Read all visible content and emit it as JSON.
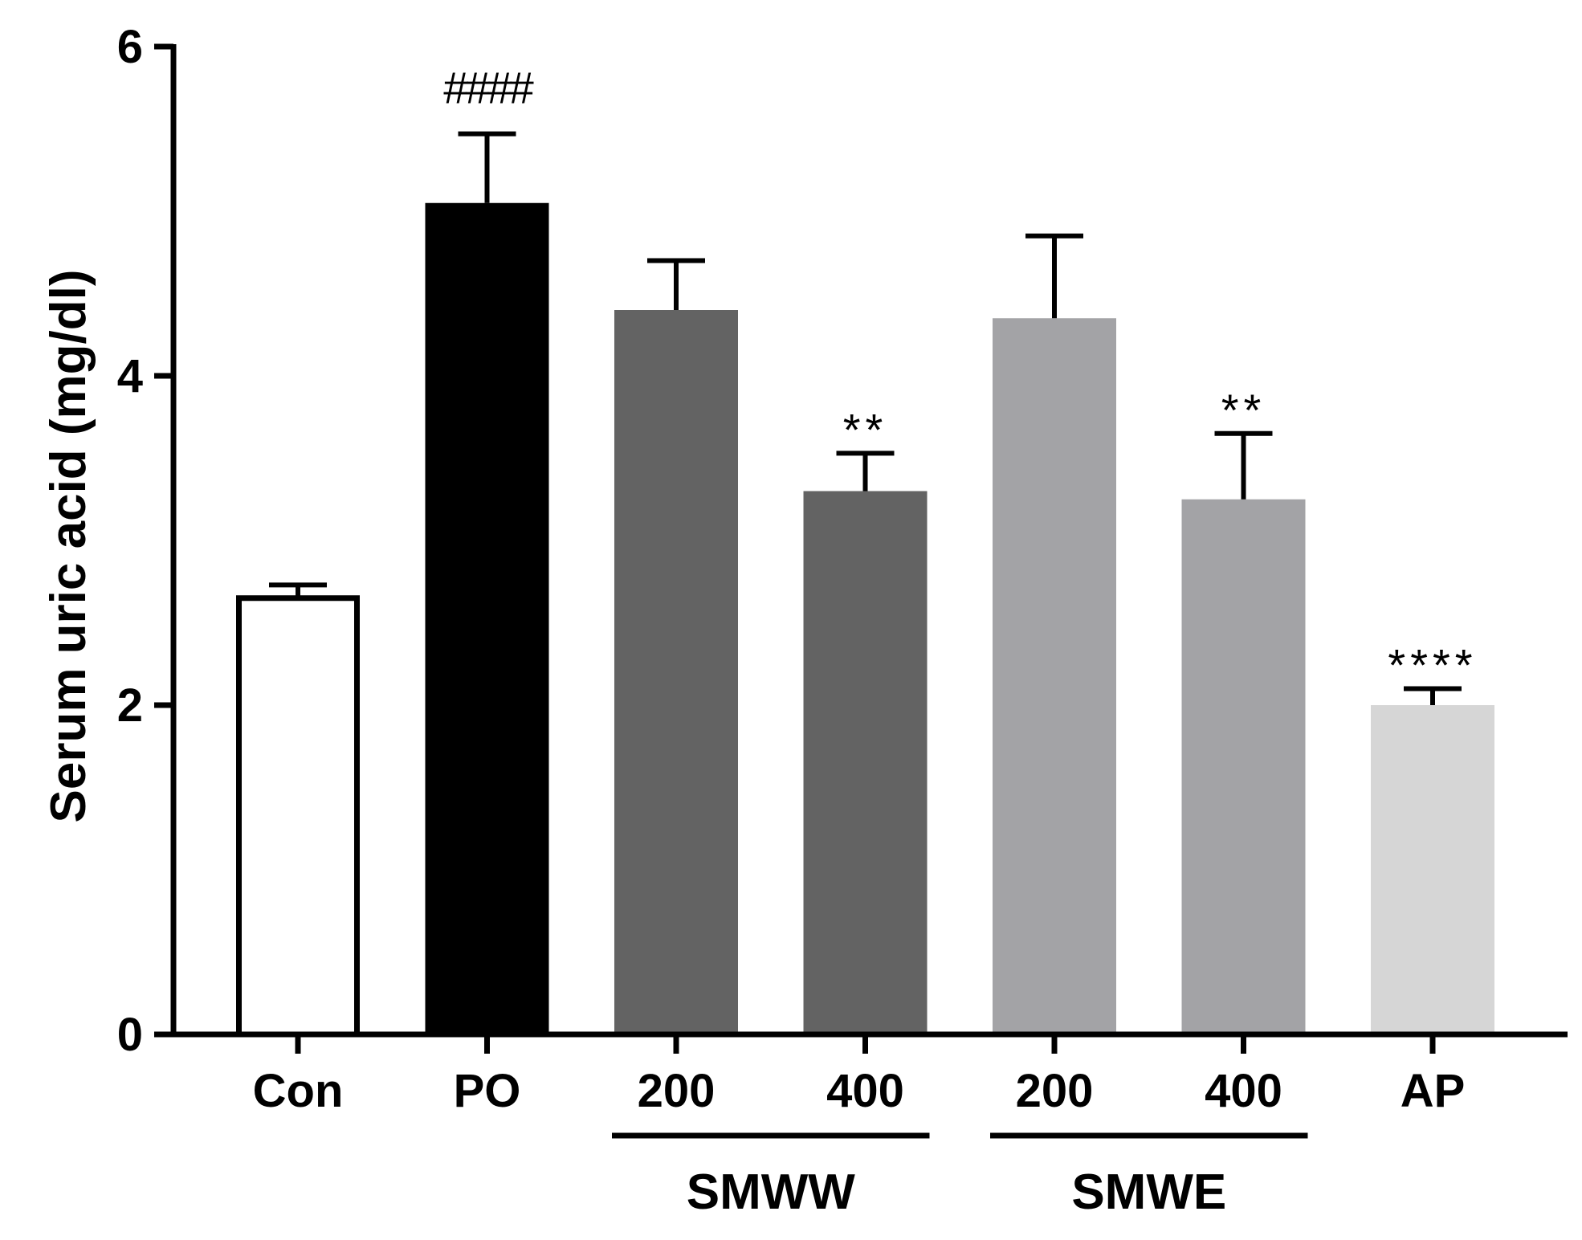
{
  "chart_data": {
    "type": "bar",
    "title": "",
    "xlabel": "",
    "ylabel": "Serum uric acid (mg/dl)",
    "ylim": [
      0,
      6
    ],
    "yticks": [
      0,
      2,
      4,
      6
    ],
    "grid": false,
    "categories": [
      "Con",
      "PO",
      "200",
      "400",
      "200",
      "400",
      "AP"
    ],
    "values": [
      2.65,
      5.05,
      4.4,
      3.3,
      4.35,
      3.25,
      2.0
    ],
    "errors": [
      0.08,
      0.42,
      0.3,
      0.23,
      0.5,
      0.4,
      0.1
    ],
    "annotations": [
      "",
      "####",
      "",
      "**",
      "",
      "**",
      "****"
    ],
    "bar_colors": [
      "#ffffff",
      "#000000",
      "#636363",
      "#636363",
      "#a3a3a6",
      "#a3a3a6",
      "#d6d6d6"
    ],
    "groups": [
      {
        "label": "SMWW",
        "members": [
          2,
          3
        ]
      },
      {
        "label": "SMWE",
        "members": [
          4,
          5
        ]
      }
    ]
  }
}
